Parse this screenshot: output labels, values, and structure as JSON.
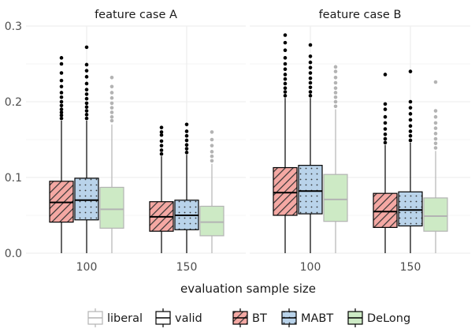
{
  "chart_data": {
    "type": "box",
    "panels": [
      {
        "title": "feature case A",
        "categories": [
          "100",
          "150"
        ],
        "boxes": [
          {
            "category": "100",
            "method": "BT",
            "status": "valid",
            "min": 0.0,
            "q1": 0.041,
            "median": 0.067,
            "q3": 0.095,
            "max": 0.175,
            "outliers": [
              0.178,
              0.182,
              0.186,
              0.19,
              0.195,
              0.2,
              0.206,
              0.212,
              0.22,
              0.228,
              0.238,
              0.25,
              0.258
            ]
          },
          {
            "category": "100",
            "method": "MABT",
            "status": "valid",
            "min": 0.0,
            "q1": 0.044,
            "median": 0.07,
            "q3": 0.099,
            "max": 0.175,
            "outliers": [
              0.178,
              0.183,
              0.188,
              0.193,
              0.198,
              0.204,
              0.21,
              0.216,
              0.224,
              0.233,
              0.241,
              0.249,
              0.272
            ]
          },
          {
            "category": "100",
            "method": "DeLong",
            "status": "liberal",
            "min": 0.0,
            "q1": 0.033,
            "median": 0.058,
            "q3": 0.087,
            "max": 0.17,
            "outliers": [
              0.175,
              0.18,
              0.186,
              0.192,
              0.198,
              0.205,
              0.212,
              0.22,
              0.232
            ]
          },
          {
            "category": "150",
            "method": "BT",
            "status": "valid",
            "min": 0.0,
            "q1": 0.029,
            "median": 0.048,
            "q3": 0.068,
            "max": 0.128,
            "outliers": [
              0.131,
              0.136,
              0.142,
              0.148,
              0.156,
              0.16,
              0.166
            ]
          },
          {
            "category": "150",
            "method": "MABT",
            "status": "valid",
            "min": 0.0,
            "q1": 0.031,
            "median": 0.05,
            "q3": 0.07,
            "max": 0.13,
            "outliers": [
              0.133,
              0.138,
              0.143,
              0.149,
              0.155,
              0.161,
              0.17
            ]
          },
          {
            "category": "150",
            "method": "DeLong",
            "status": "liberal",
            "min": 0.0,
            "q1": 0.023,
            "median": 0.041,
            "q3": 0.062,
            "max": 0.118,
            "outliers": [
              0.122,
              0.128,
              0.134,
              0.142,
              0.15,
              0.16
            ]
          }
        ]
      },
      {
        "title": "feature case B",
        "categories": [
          "100",
          "150"
        ],
        "boxes": [
          {
            "category": "100",
            "method": "BT",
            "status": "valid",
            "min": 0.0,
            "q1": 0.05,
            "median": 0.08,
            "q3": 0.113,
            "max": 0.205,
            "outliers": [
              0.208,
              0.213,
              0.218,
              0.224,
              0.23,
              0.236,
              0.243,
              0.25,
              0.258,
              0.268,
              0.278,
              0.288
            ]
          },
          {
            "category": "100",
            "method": "MABT",
            "status": "valid",
            "min": 0.0,
            "q1": 0.052,
            "median": 0.082,
            "q3": 0.116,
            "max": 0.205,
            "outliers": [
              0.208,
              0.213,
              0.219,
              0.225,
              0.231,
              0.238,
              0.245,
              0.252,
              0.26,
              0.275
            ]
          },
          {
            "category": "100",
            "method": "DeLong",
            "status": "liberal",
            "min": 0.0,
            "q1": 0.042,
            "median": 0.071,
            "q3": 0.104,
            "max": 0.19,
            "outliers": [
              0.194,
              0.2,
              0.206,
              0.212,
              0.218,
              0.225,
              0.232,
              0.24,
              0.246
            ]
          },
          {
            "category": "150",
            "method": "BT",
            "status": "valid",
            "min": 0.0,
            "q1": 0.034,
            "median": 0.055,
            "q3": 0.079,
            "max": 0.143,
            "outliers": [
              0.146,
              0.151,
              0.157,
              0.164,
              0.172,
              0.18,
              0.19,
              0.197,
              0.236
            ]
          },
          {
            "category": "150",
            "method": "MABT",
            "status": "valid",
            "min": 0.0,
            "q1": 0.036,
            "median": 0.057,
            "q3": 0.081,
            "max": 0.146,
            "outliers": [
              0.149,
              0.155,
              0.161,
              0.168,
              0.176,
              0.184,
              0.192,
              0.2,
              0.24
            ]
          },
          {
            "category": "150",
            "method": "DeLong",
            "status": "liberal",
            "min": 0.0,
            "q1": 0.029,
            "median": 0.049,
            "q3": 0.073,
            "max": 0.135,
            "outliers": [
              0.139,
              0.145,
              0.151,
              0.158,
              0.165,
              0.172,
              0.18,
              0.188,
              0.226
            ]
          }
        ]
      }
    ],
    "xlabel": "evaluation sample size",
    "ylabel": "",
    "ylim": [
      0,
      0.3
    ],
    "yticks": [
      0.0,
      0.1,
      0.2,
      0.3
    ],
    "ytick_labels": [
      "0.0",
      "0.1",
      "0.2",
      "0.3"
    ],
    "grid": true,
    "legend_position": "bottom",
    "legend": {
      "status": [
        {
          "label": "liberal",
          "color": "#b3b3b3"
        },
        {
          "label": "valid",
          "color": "#000000"
        }
      ],
      "methods": [
        {
          "label": "BT",
          "fill": "#f4a8a3",
          "pattern": "stripes"
        },
        {
          "label": "MABT",
          "fill": "#b9d3ea",
          "pattern": "dots"
        },
        {
          "label": "DeLong",
          "fill": "#cdeac5",
          "pattern": "none"
        }
      ]
    },
    "colors": {
      "BT": "#f4a8a3",
      "MABT": "#b9d3ea",
      "DeLong": "#cdeac5",
      "valid": "#000000",
      "liberal": "#b3b3b3",
      "grid": "#ebebeb"
    }
  }
}
